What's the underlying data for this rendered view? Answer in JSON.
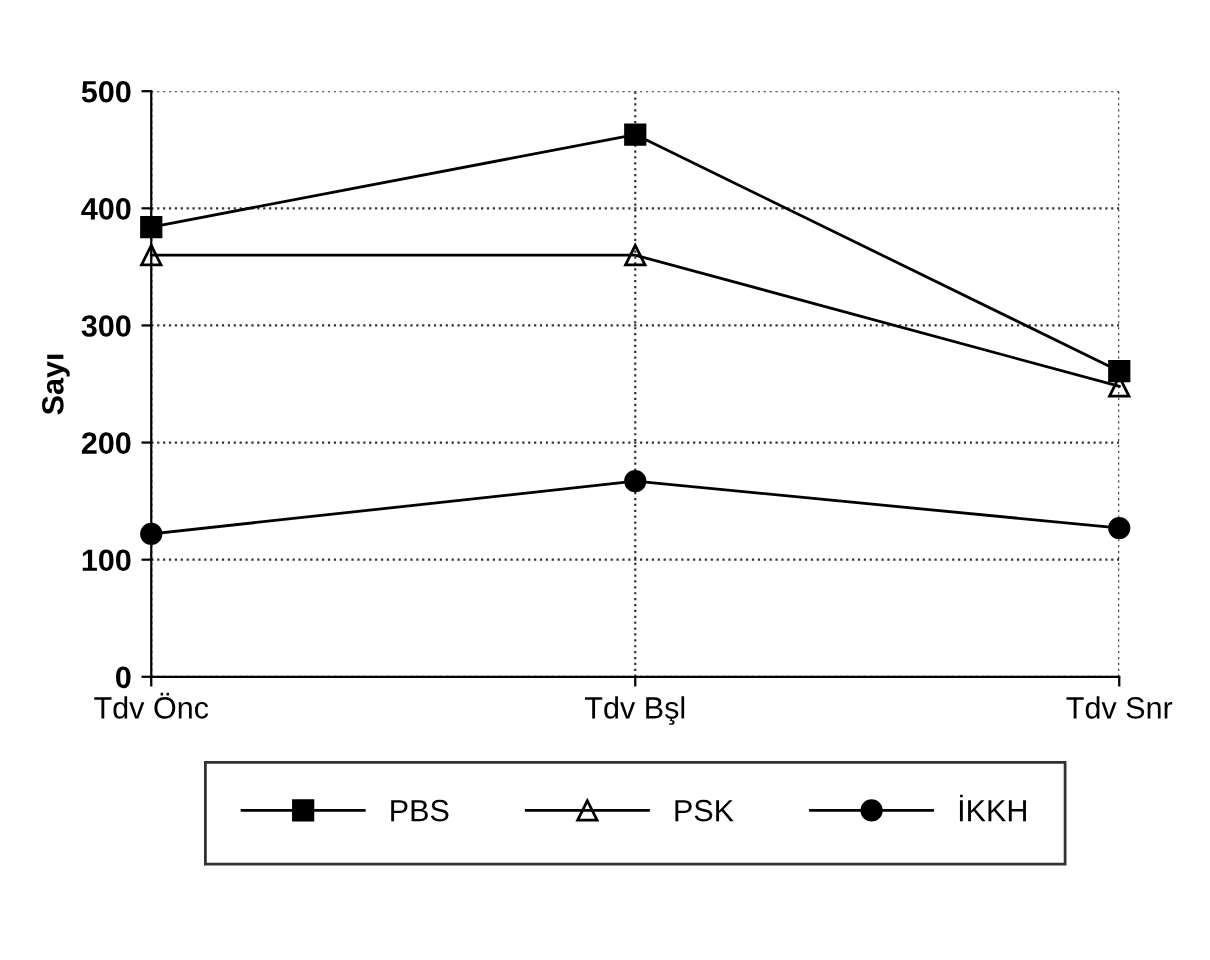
{
  "chart_data": {
    "type": "line",
    "ylabel": "Sayı",
    "categories": [
      "Tdv Önc",
      "Tdv Bşl",
      "Tdv Snr"
    ],
    "series": [
      {
        "name": "PBS",
        "color": "#000000",
        "marker": "square",
        "values": [
          384,
          463,
          261
        ]
      },
      {
        "name": "PSK",
        "color": "#000000",
        "marker": "triangle",
        "values": [
          360,
          360,
          248
        ]
      },
      {
        "name": "İKKH",
        "color": "#000000",
        "marker": "circle",
        "values": [
          122,
          167,
          127
        ]
      }
    ],
    "ylim": [
      0,
      500
    ],
    "yticks": [
      0,
      100,
      200,
      300,
      400,
      500
    ],
    "grid": true,
    "legend": "bottom",
    "line_style": "solid"
  }
}
